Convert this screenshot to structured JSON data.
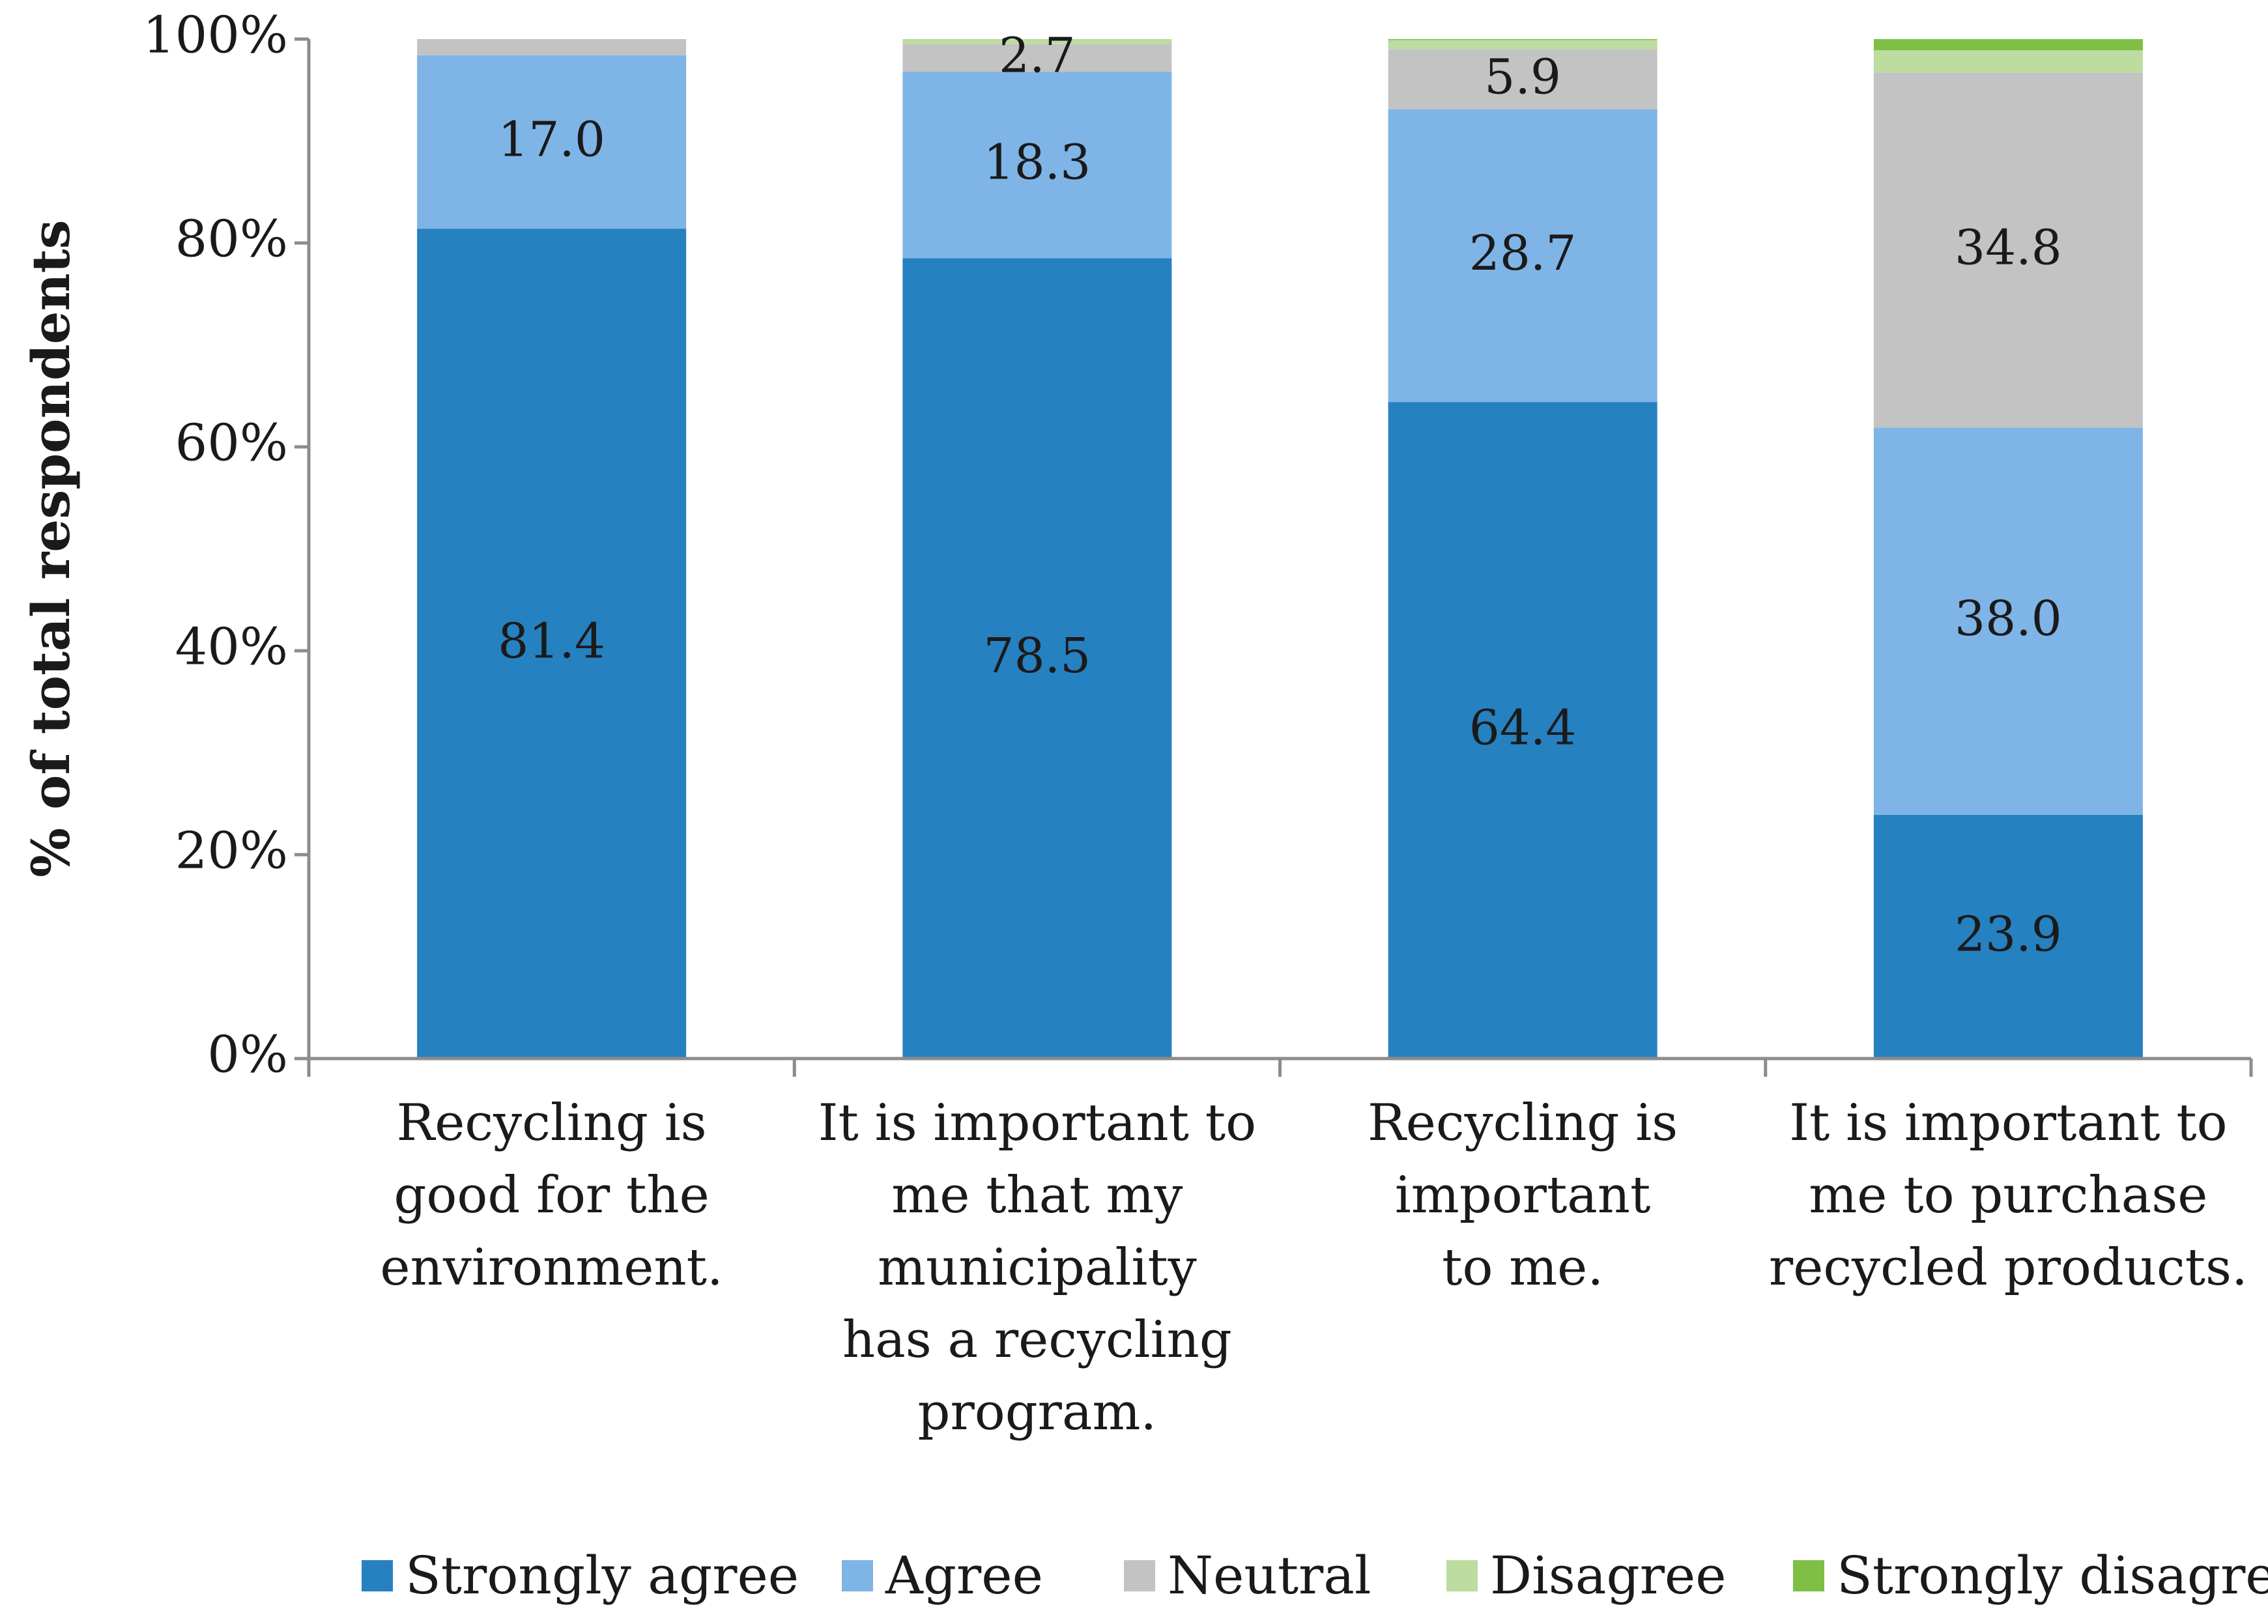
{
  "chart_data": {
    "type": "bar",
    "stacked": true,
    "title": "",
    "xlabel": "",
    "ylabel": "% of total respondents",
    "ylim": [
      0,
      100
    ],
    "yticks": [
      "0%",
      "20%",
      "40%",
      "60%",
      "80%",
      "100%"
    ],
    "grid": false,
    "legend_position": "bottom",
    "categories": [
      [
        "Recycling is",
        "good for the",
        "environment."
      ],
      [
        "It is important to",
        "me that my",
        "municipality",
        "has a recycling",
        "program."
      ],
      [
        "Recycling is",
        "important",
        "to me."
      ],
      [
        "It is important to",
        "me to purchase",
        "recycled products."
      ]
    ],
    "series": [
      {
        "name": "Strongly agree",
        "color": "#2681c0",
        "values": [
          81.4,
          78.5,
          64.4,
          23.9
        ],
        "labels": [
          "81.4",
          "78.5",
          "64.4",
          "23.9"
        ]
      },
      {
        "name": "Agree",
        "color": "#7fb4e6",
        "values": [
          17.0,
          18.3,
          28.7,
          38.0
        ],
        "labels": [
          "17.0",
          "18.3",
          "28.7",
          "38.0"
        ]
      },
      {
        "name": "Neutral",
        "color": "#c3c3c3",
        "values": [
          1.6,
          2.7,
          5.9,
          34.8
        ],
        "labels": [
          "",
          "2.7",
          "5.9",
          "34.8"
        ]
      },
      {
        "name": "Disagree",
        "color": "#bcdca0",
        "values": [
          0.0,
          0.5,
          0.9,
          2.2
        ],
        "labels": [
          "",
          "",
          "",
          ""
        ]
      },
      {
        "name": "Strongly disagree",
        "color": "#7fbf45",
        "values": [
          0.0,
          0.0,
          0.1,
          1.1
        ],
        "labels": [
          "",
          "",
          "",
          ""
        ]
      }
    ]
  }
}
